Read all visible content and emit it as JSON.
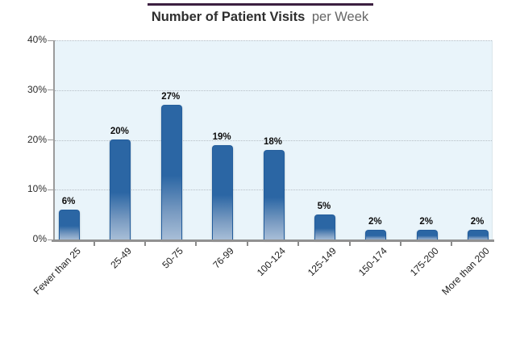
{
  "title": {
    "main": "Number of Patient Visits",
    "suffix": "per Week"
  },
  "chart_data": {
    "type": "bar",
    "title": "Number of Patient Visits per Week",
    "categories": [
      "Fewer than 25",
      "25-49",
      "50-75",
      "76-99",
      "100-124",
      "125-149",
      "150-174",
      "175-200",
      "More than 200"
    ],
    "values": [
      6,
      20,
      27,
      19,
      18,
      5,
      2,
      2,
      2
    ],
    "value_labels": [
      "6%",
      "20%",
      "27%",
      "19%",
      "18%",
      "5%",
      "2%",
      "2%",
      "2%"
    ],
    "xlabel": "",
    "ylabel": "",
    "ylim": [
      0,
      40
    ],
    "y_ticks": [
      {
        "label": "0%",
        "value": 0
      },
      {
        "label": "10%",
        "value": 10
      },
      {
        "label": "20%",
        "value": 20
      },
      {
        "label": "30%",
        "value": 30
      },
      {
        "label": "40%",
        "value": 40
      }
    ],
    "grid": "horizontal-dotted",
    "legend": "none"
  },
  "colors": {
    "title_rule": "#3c2041",
    "plot_bg": "#e9f4fa",
    "gridline": "#b6bec5",
    "axis": "#919191",
    "bar_top": "#2b66a4",
    "bar_fade_mid": "#7b9cc2",
    "bar_bottom": "#a9bfd8",
    "bar_border": "#235d9c"
  }
}
